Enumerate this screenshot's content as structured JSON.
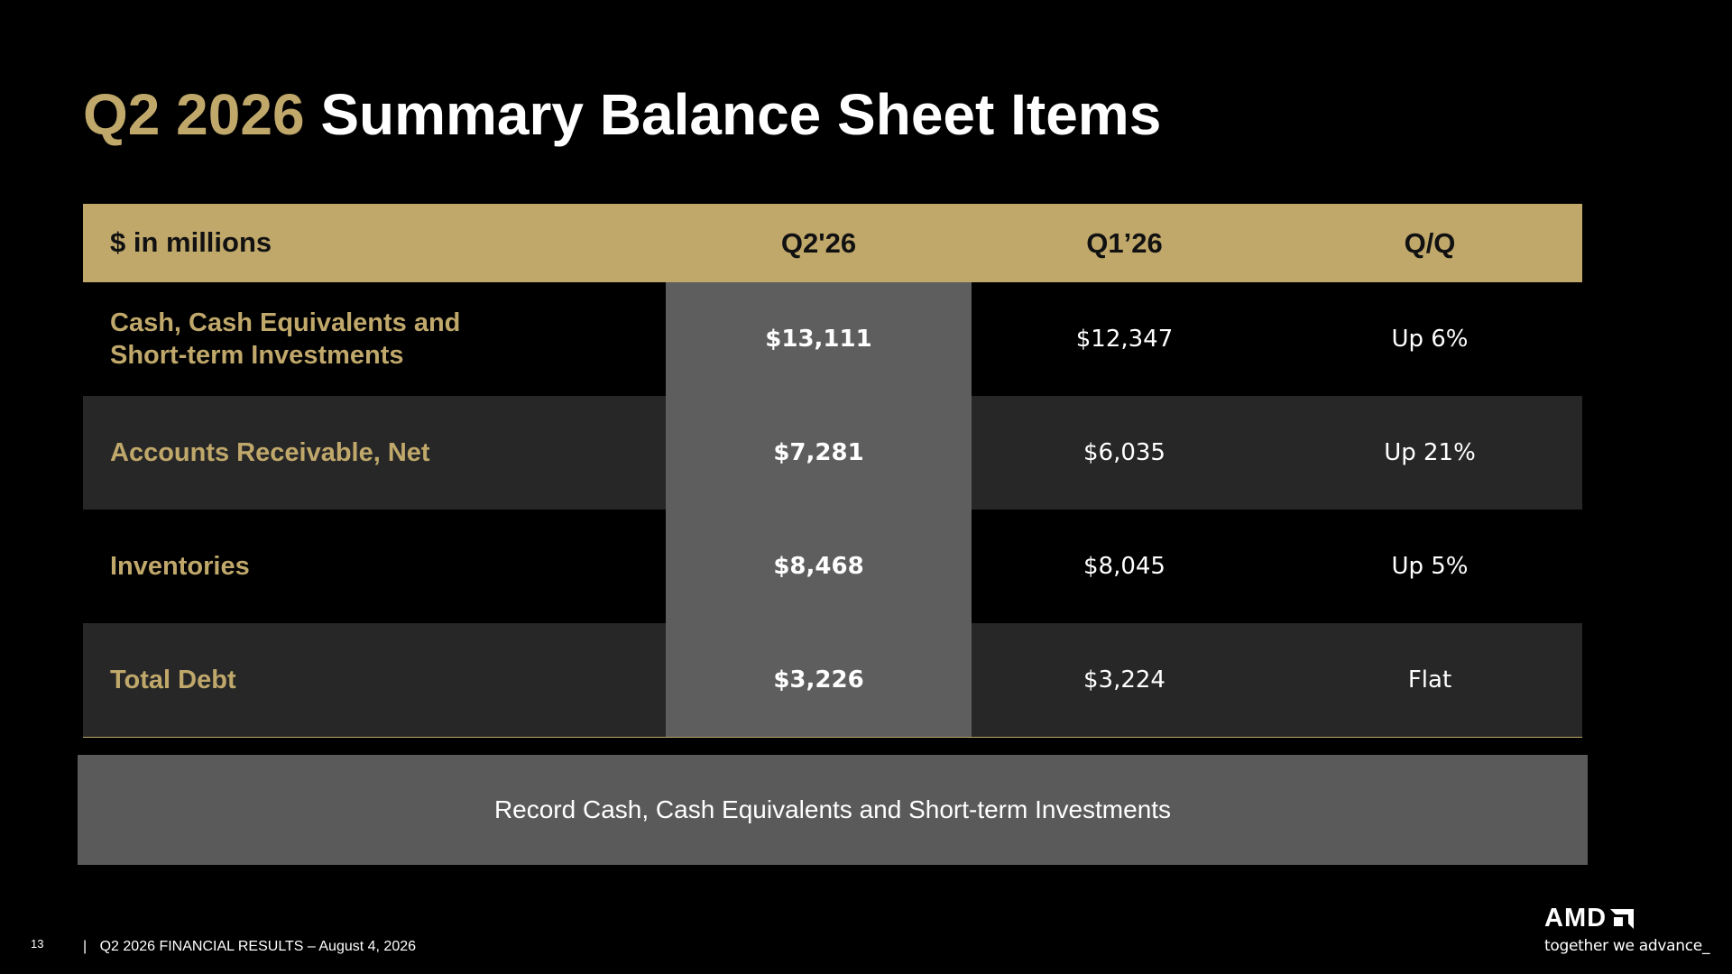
{
  "slide": {
    "title_accent": "Q2 2026",
    "title_main": "Summary Balance Sheet Items",
    "page_number": "13",
    "footer_separator": "|",
    "footer_text": "Q2 2026 FINANCIAL RESULTS – August 4, 2026",
    "callout": "Record Cash, Cash Equivalents and Short-term Investments"
  },
  "table": {
    "headers": [
      "$ in millions",
      "Q2'26",
      "Q1’26",
      "Q/Q"
    ],
    "rows": [
      {
        "label_line1": "Cash, Cash Equivalents and",
        "label_line2": "Short-term Investments",
        "q2": "$13,111",
        "q1": "$12,347",
        "qq": "Up 6%"
      },
      {
        "label_line1": "Accounts Receivable, Net",
        "label_line2": "",
        "q2": "$7,281",
        "q1": "$6,035",
        "qq": "Up 21%"
      },
      {
        "label_line1": "Inventories",
        "label_line2": "",
        "q2": "$8,468",
        "q1": "$8,045",
        "qq": "Up 5%"
      },
      {
        "label_line1": "Total Debt",
        "label_line2": "",
        "q2": "$3,226",
        "q1": "$3,224",
        "qq": "Flat"
      }
    ]
  },
  "logo": {
    "wordmark": "AMD",
    "tagline": "together we advance_",
    "icon": "amd-arrow-icon"
  },
  "colors": {
    "accent_gold": "#c0a86b",
    "background": "#000000",
    "row_dark": "#272727",
    "highlight_column": "#5e5e5e",
    "callout_bg": "#5a5a5a"
  }
}
